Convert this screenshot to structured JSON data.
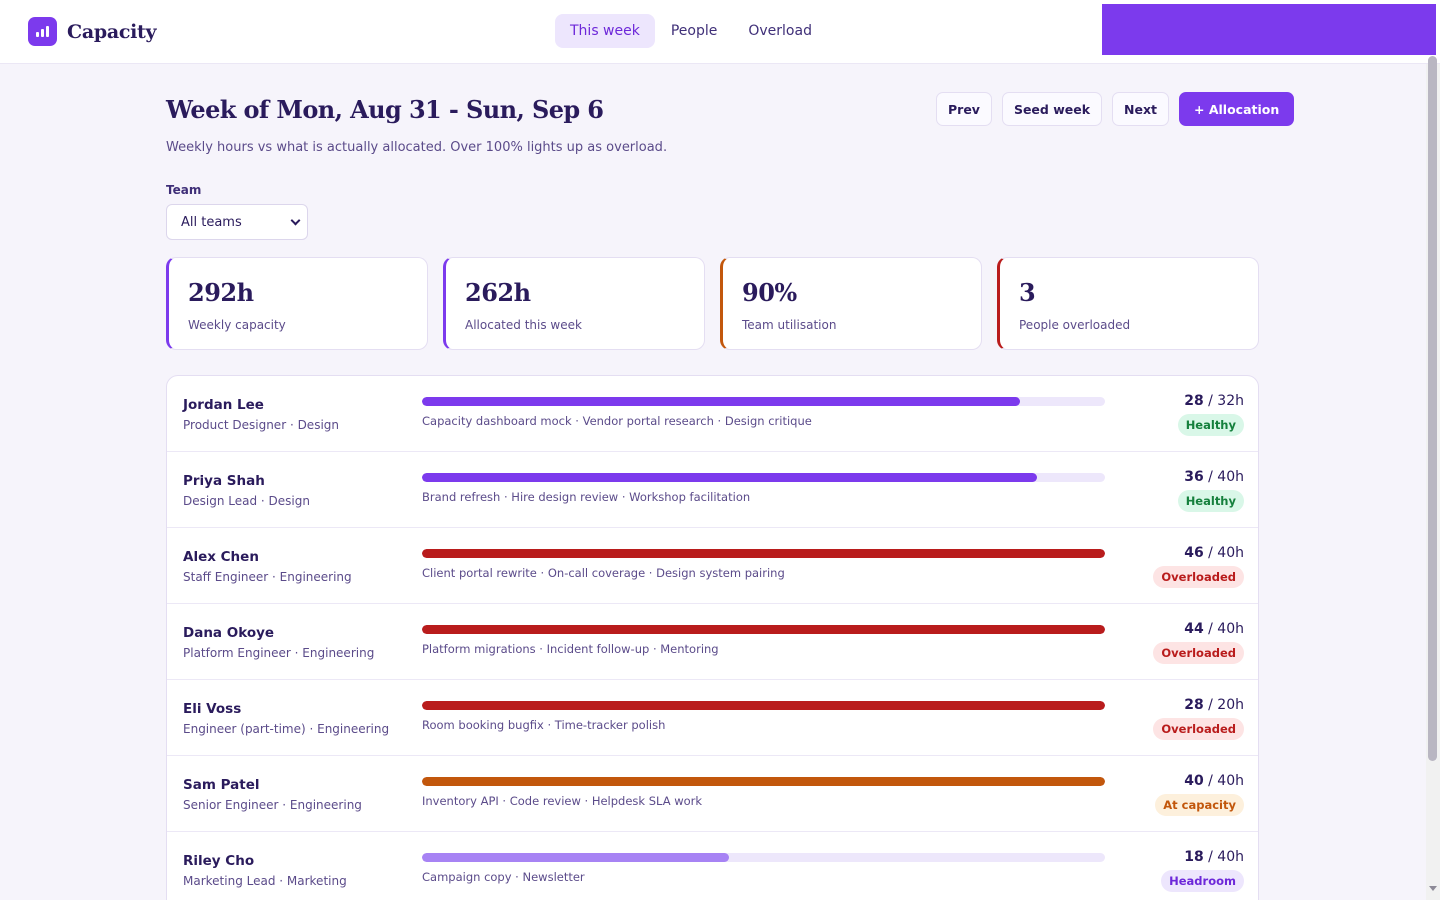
{
  "app": {
    "name": "Capacity"
  },
  "nav": {
    "tabs": [
      {
        "label": "This week",
        "active": true
      },
      {
        "label": "People",
        "active": false
      },
      {
        "label": "Overload",
        "active": false
      }
    ]
  },
  "header": {
    "title": "Week of Mon, Aug 31 - Sun, Sep 6",
    "subtitle": "Weekly hours vs what is actually allocated. Over 100% lights up as overload.",
    "actions": {
      "prev": "Prev",
      "seed": "Seed week",
      "next": "Next",
      "add": "+ Allocation"
    }
  },
  "filter": {
    "label": "Team",
    "value": "All teams"
  },
  "stats": [
    {
      "value": "292h",
      "label": "Weekly capacity",
      "accent": "#7c3aed"
    },
    {
      "value": "262h",
      "label": "Allocated this week",
      "accent": "#7c3aed"
    },
    {
      "value": "90%",
      "label": "Team utilisation",
      "accent": "#c2570c"
    },
    {
      "value": "3",
      "label": "People overloaded",
      "accent": "#b91c1c"
    }
  ],
  "people": [
    {
      "name": "Jordan Lee",
      "role": "Product Designer · Design",
      "tasks": "Capacity dashboard mock · Vendor portal research · Design critique",
      "allocated": "28",
      "capacity": " / 32h",
      "utilisation": 0.875,
      "status": "Healthy"
    },
    {
      "name": "Priya Shah",
      "role": "Design Lead · Design",
      "tasks": "Brand refresh · Hire design review · Workshop facilitation",
      "allocated": "36",
      "capacity": " / 40h",
      "utilisation": 0.9,
      "status": "Healthy"
    },
    {
      "name": "Alex Chen",
      "role": "Staff Engineer · Engineering",
      "tasks": "Client portal rewrite · On-call coverage · Design system pairing",
      "allocated": "46",
      "capacity": " / 40h",
      "utilisation": 1.15,
      "status": "Overloaded"
    },
    {
      "name": "Dana Okoye",
      "role": "Platform Engineer · Engineering",
      "tasks": "Platform migrations · Incident follow-up · Mentoring",
      "allocated": "44",
      "capacity": " / 40h",
      "utilisation": 1.1,
      "status": "Overloaded"
    },
    {
      "name": "Eli Voss",
      "role": "Engineer (part-time) · Engineering",
      "tasks": "Room booking bugfix · Time-tracker polish",
      "allocated": "28",
      "capacity": " / 20h",
      "utilisation": 1.4,
      "status": "Overloaded"
    },
    {
      "name": "Sam Patel",
      "role": "Senior Engineer · Engineering",
      "tasks": "Inventory API · Code review · Helpdesk SLA work",
      "allocated": "40",
      "capacity": " / 40h",
      "utilisation": 1.0,
      "status": "At capacity"
    },
    {
      "name": "Riley Cho",
      "role": "Marketing Lead · Marketing",
      "tasks": "Campaign copy · Newsletter",
      "allocated": "18",
      "capacity": " / 40h",
      "utilisation": 0.45,
      "status": "Headroom"
    }
  ],
  "status_styles": {
    "Healthy": {
      "bar": "#7c3aed",
      "badge_bg": "#d9f7e8",
      "badge_fg": "#15803d"
    },
    "Overloaded": {
      "bar": "#b91c1c",
      "badge_bg": "#fde4e4",
      "badge_fg": "#b91c1c"
    },
    "At capacity": {
      "bar": "#c2570c",
      "badge_bg": "#fdf0dc",
      "badge_fg": "#c2570c"
    },
    "Headroom": {
      "bar": "#a783f4",
      "badge_bg": "#ede6fd",
      "badge_fg": "#6d28d9"
    }
  }
}
